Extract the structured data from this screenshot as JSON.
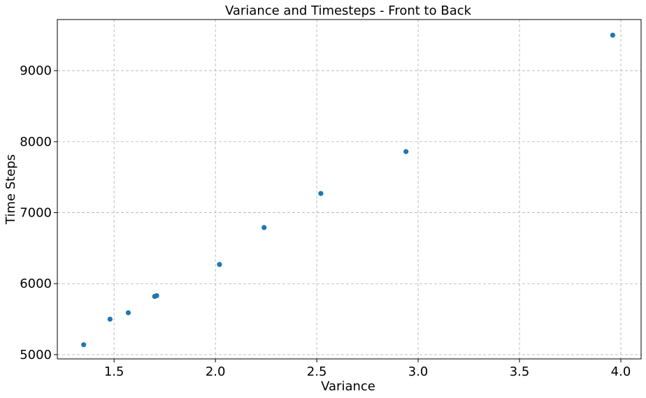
{
  "chart_data": {
    "type": "scatter",
    "title": "Variance and Timesteps - Front to Back",
    "xlabel": "Variance",
    "ylabel": "Time Steps",
    "xlim": [
      1.22,
      4.1
    ],
    "ylim": [
      4940,
      9720
    ],
    "grid": true,
    "x_ticks": [
      1.5,
      2.0,
      2.5,
      3.0,
      3.5,
      4.0
    ],
    "x_tick_labels": [
      "1.5",
      "2.0",
      "2.5",
      "3.0",
      "3.5",
      "4.0"
    ],
    "y_ticks": [
      5000,
      6000,
      7000,
      8000,
      9000
    ],
    "y_tick_labels": [
      "5000",
      "6000",
      "7000",
      "8000",
      "9000"
    ],
    "marker_color": "#1f77b4",
    "series": [
      {
        "points": [
          {
            "x": 1.35,
            "y": 5140
          },
          {
            "x": 1.48,
            "y": 5500
          },
          {
            "x": 1.57,
            "y": 5590
          },
          {
            "x": 1.7,
            "y": 5820
          },
          {
            "x": 1.71,
            "y": 5830
          },
          {
            "x": 2.02,
            "y": 6270
          },
          {
            "x": 2.24,
            "y": 6790
          },
          {
            "x": 2.52,
            "y": 7270
          },
          {
            "x": 2.94,
            "y": 7860
          },
          {
            "x": 3.96,
            "y": 9500
          }
        ]
      }
    ]
  }
}
